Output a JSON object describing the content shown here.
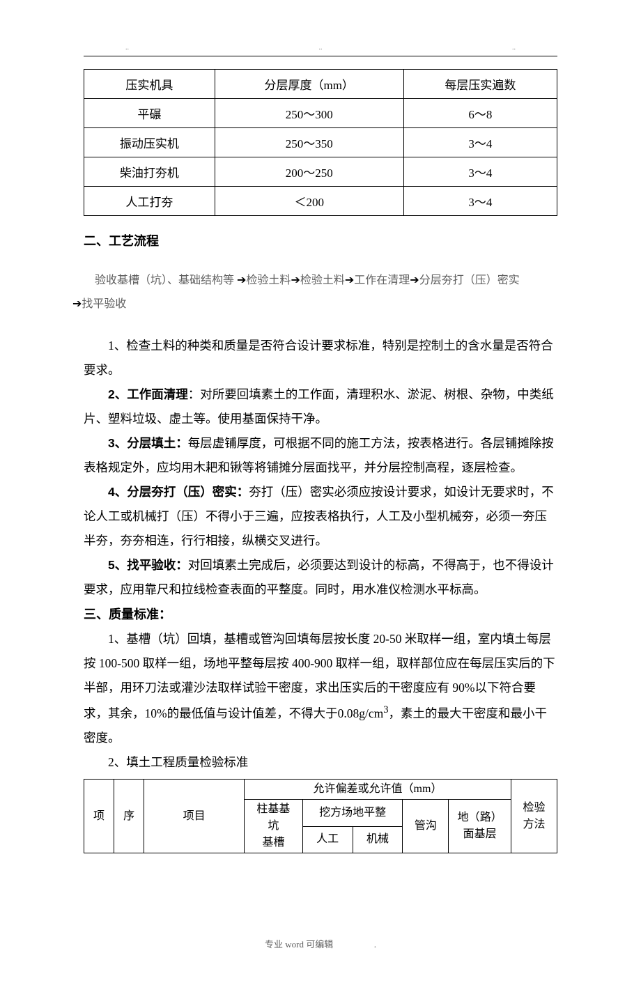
{
  "table1": {
    "headers": [
      "压实机具",
      "分层厚度（mm）",
      "每层压实遍数"
    ],
    "rows": [
      [
        "平碾",
        "250～300",
        "6～8"
      ],
      [
        "振动压实机",
        "250～350",
        "3～4"
      ],
      [
        "柴油打夯机",
        "200～250",
        "3～4"
      ],
      [
        "人工打夯",
        "＜200",
        "3～4"
      ]
    ]
  },
  "heading_process": "二、工艺流程",
  "flow": {
    "s1": "验收基槽（坑）、基础结构等",
    "s2": "检验土料",
    "s3": "检验土料",
    "s4": "工作在清理",
    "s5": "分层夯打（压）密实",
    "s6": "找平验收"
  },
  "para1": "1、检查土料的种类和质量是否符合设计要求标准，特别是控制土的含水量是否符合要求。",
  "para2_lead": "2、工作面清理",
  "para2_rest": "：对所要回填素土的工作面，清理积水、淤泥、树根、杂物，中类纸片、塑料垃圾、虚土等。使用基面保持干净。",
  "para3_lead": "3、分层填土：",
  "para3_rest": "每层虚铺厚度，可根据不同的施工方法，按表格进行。各层铺摊除按表格规定外，应均用木耙和锹等将铺摊分层面找平，并分层控制高程，逐层检查。",
  "para4_lead": "4、分层夯打（压）密实：",
  "para4_rest": "夯打（压）密实必须应按设计要求，如设计无要求时，不论人工或机械打（压）不得小于三遍，应按表格执行，人工及小型机械夯，必须一夯压半夯，夯夯相连，行行相接，纵横交叉进行。",
  "para5_lead": "5、找平验收：",
  "para5_rest": "对回填素土完成后，必须要达到设计的标高，不得高于，也不得设计要求，应用靠尺和拉线检查表面的平整度。同时，用水准仪检测水平标高。",
  "heading_quality": "三、质量标准：",
  "para_q1_a": "1、基槽（坑）回填，基槽或管沟回填每层按长度 20-50 米取样一组，室内填土每层按 100-500 取样一组，场地平整每层按 400-900 取样一组，取样部位应在每层压实后的下半部，用环刀法或灌沙法取样试验干密度，求出压实后的干密度应有 90%以下符合要求，其余，10%的最低值与设计值差，不得大于0.08g/cm",
  "para_q1_sup": "3",
  "para_q1_b": "，素土的最大干密度和最小干密度。",
  "para_q2": "2、填土工程质量检验标准",
  "table2": {
    "top_span": "允许偏差或允许值（mm）",
    "col1": "项",
    "col2": "序",
    "col3": "项目",
    "col4_a": "柱基基",
    "col4_b": "坑",
    "col4_c": "基槽",
    "col5": "挖方场地平整",
    "col5a": "人工",
    "col5b": "机械",
    "col6": "管沟",
    "col7_a": "地（路）",
    "col7_b": "面基层",
    "col8_a": "检验",
    "col8_b": "方法"
  },
  "footer": "专业 word 可编辑",
  "footer_dot": "."
}
